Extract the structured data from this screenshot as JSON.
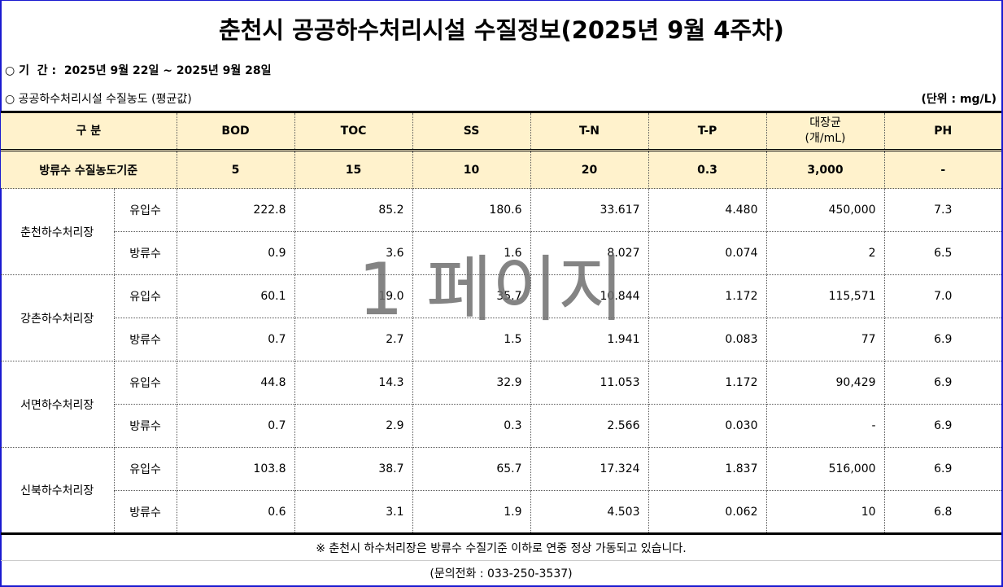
{
  "title": "춘천시 공공하수처리시설 수질정보(2025년 9월 4주차)",
  "period": "○ 기  간 :  2025년 9월 22일 ~ 2025년 9월 28일",
  "subtitle": "○ 공공하수처리시설 수질농도 (평균값)",
  "unit": "(단위 : mg/L)",
  "headers": [
    "구  분",
    "BOD",
    "TOC",
    "SS",
    "T-N",
    "T-P",
    "대장균\n(개/mL)",
    "PH"
  ],
  "standard": {
    "label": "방류수 수질농도기준",
    "values": [
      "5",
      "15",
      "10",
      "20",
      "0.3",
      "3,000",
      "-"
    ]
  },
  "plants": [
    {
      "name": "춘천하수처리장",
      "rows": [
        {
          "type": "유입수",
          "values": [
            "222.8",
            "85.2",
            "180.6",
            "33.617",
            "4.480",
            "450,000",
            "7.3"
          ]
        },
        {
          "type": "방류수",
          "values": [
            "0.9",
            "3.6",
            "1.6",
            "8.027",
            "0.074",
            "2",
            "6.5"
          ]
        }
      ]
    },
    {
      "name": "강촌하수처리장",
      "rows": [
        {
          "type": "유입수",
          "values": [
            "60.1",
            "19.0",
            "35.7",
            "10.844",
            "1.172",
            "115,571",
            "7.0"
          ]
        },
        {
          "type": "방류수",
          "values": [
            "0.7",
            "2.7",
            "1.5",
            "1.941",
            "0.083",
            "77",
            "6.9"
          ]
        }
      ]
    },
    {
      "name": "서면하수처리장",
      "rows": [
        {
          "type": "유입수",
          "values": [
            "44.8",
            "14.3",
            "32.9",
            "11.053",
            "1.172",
            "90,429",
            "6.9"
          ]
        },
        {
          "type": "방류수",
          "values": [
            "0.7",
            "2.9",
            "0.3",
            "2.566",
            "0.030",
            "-",
            "6.9"
          ]
        }
      ]
    },
    {
      "name": "신북하수처리장",
      "rows": [
        {
          "type": "유입수",
          "values": [
            "103.8",
            "38.7",
            "65.7",
            "17.324",
            "1.837",
            "516,000",
            "6.9"
          ]
        },
        {
          "type": "방류수",
          "values": [
            "0.6",
            "3.1",
            "1.9",
            "4.503",
            "0.062",
            "10",
            "6.8"
          ]
        }
      ]
    }
  ],
  "note": "※ 춘천시 하수처리장은 방류수 수질기준 이하로 연중 정상 가동되고 있습니다.",
  "contact": "(문의전화 : 033-250-3537)",
  "watermark": "1 페이지",
  "colors": {
    "header_bg": "#fff2cc",
    "frame": "#1a1ad0"
  }
}
